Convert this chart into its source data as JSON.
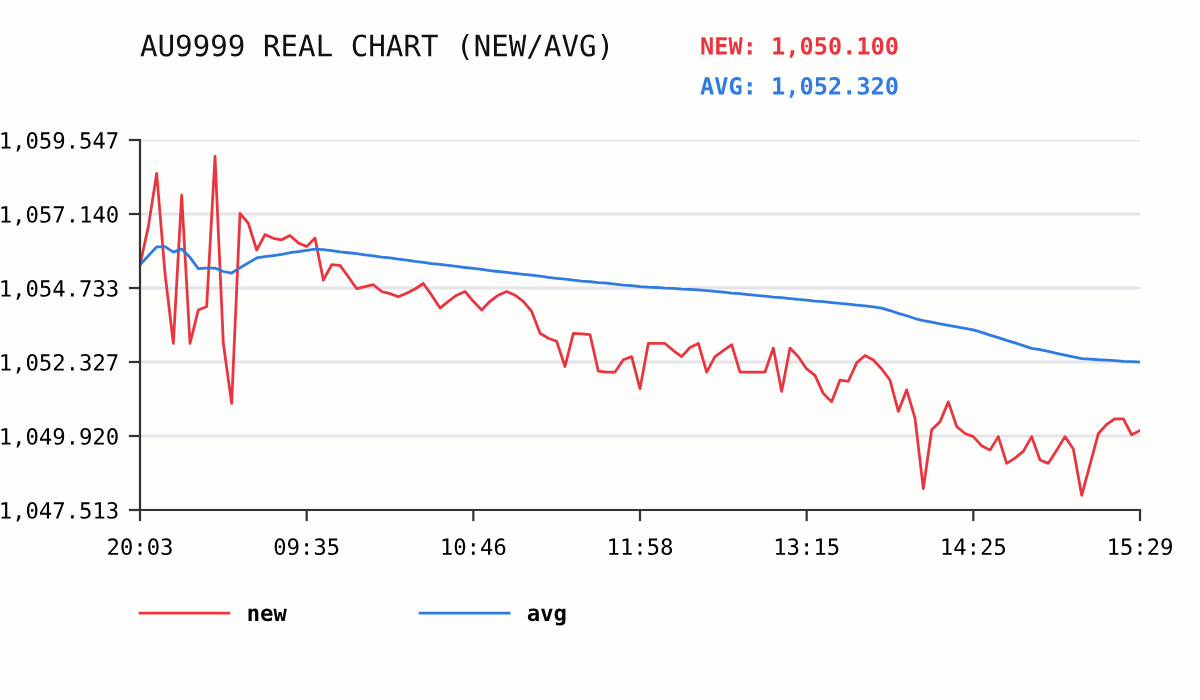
{
  "chart_data": {
    "type": "line",
    "title": "AU9999 REAL CHART (NEW/AVG)",
    "annotations": [
      "NEW: 1,050.100",
      "AVG: 1,052.320"
    ],
    "categories": [
      "20:03",
      null,
      null,
      null,
      null,
      null,
      null,
      null,
      null,
      null,
      null,
      null,
      null,
      null,
      null,
      null,
      null,
      null,
      null,
      null,
      "09:35",
      null,
      null,
      null,
      null,
      null,
      null,
      null,
      null,
      null,
      null,
      null,
      null,
      null,
      null,
      null,
      null,
      null,
      null,
      null,
      "10:46",
      null,
      null,
      null,
      null,
      null,
      null,
      null,
      null,
      null,
      null,
      null,
      null,
      null,
      null,
      null,
      null,
      null,
      null,
      null,
      "11:58",
      null,
      null,
      null,
      null,
      null,
      null,
      null,
      null,
      null,
      null,
      null,
      null,
      null,
      null,
      null,
      null,
      null,
      null,
      null,
      "13:15",
      null,
      null,
      null,
      null,
      null,
      null,
      null,
      null,
      null,
      null,
      null,
      null,
      null,
      null,
      null,
      null,
      null,
      null,
      null,
      "14:25",
      null,
      null,
      null,
      null,
      null,
      null,
      null,
      null,
      null,
      null,
      null,
      null,
      null,
      null,
      null,
      null,
      null,
      null,
      null,
      "15:29"
    ],
    "ylim": [
      1047.513,
      1059.547
    ],
    "yticks": [
      {
        "value": 1047.513,
        "label": "1,047.513"
      },
      {
        "value": 1049.92,
        "label": "1,049.920"
      },
      {
        "value": 1052.327,
        "label": "1,052.327"
      },
      {
        "value": 1054.733,
        "label": "1,054.733"
      },
      {
        "value": 1057.14,
        "label": "1,057.140"
      },
      {
        "value": 1059.547,
        "label": "1,059.547"
      }
    ],
    "grid": "y",
    "legend": "bottom left",
    "marker": "none",
    "line_style": "solid",
    "series": [
      {
        "name": "new",
        "color": "#e8353f",
        "values": [
          1055.49,
          1056.73,
          1058.46,
          1055.21,
          1052.93,
          1057.75,
          1052.93,
          1054.02,
          1054.13,
          1059.01,
          1052.93,
          1050.98,
          1057.16,
          1056.84,
          1055.97,
          1056.47,
          1056.35,
          1056.3,
          1056.44,
          1056.2,
          1056.08,
          1056.36,
          1054.99,
          1055.49,
          1055.47,
          1055.1,
          1054.71,
          1054.78,
          1054.84,
          1054.62,
          1054.55,
          1054.45,
          1054.56,
          1054.7,
          1054.88,
          1054.5,
          1054.08,
          1054.3,
          1054.5,
          1054.62,
          1054.3,
          1054.02,
          1054.3,
          1054.5,
          1054.62,
          1054.5,
          1054.3,
          1053.97,
          1053.26,
          1053.1,
          1053.0,
          1052.18,
          1053.26,
          1053.24,
          1053.22,
          1052.03,
          1052.0,
          1052.0,
          1052.4,
          1052.5,
          1051.46,
          1052.93,
          1052.93,
          1052.93,
          1052.7,
          1052.5,
          1052.8,
          1052.93,
          1052.0,
          1052.5,
          1052.7,
          1052.89,
          1052.0,
          1052.0,
          1052.0,
          1052.0,
          1052.78,
          1051.37,
          1052.78,
          1052.5,
          1052.1,
          1051.89,
          1051.3,
          1051.03,
          1051.74,
          1051.7,
          1052.3,
          1052.54,
          1052.39,
          1052.1,
          1051.74,
          1050.72,
          1051.42,
          1050.5,
          1048.21,
          1050.12,
          1050.38,
          1051.03,
          1050.23,
          1050.0,
          1049.9,
          1049.6,
          1049.46,
          1049.9,
          1049.03,
          1049.2,
          1049.42,
          1049.9,
          1049.14,
          1049.03,
          1049.46,
          1049.9,
          1049.5,
          1047.99,
          1048.99,
          1050.0,
          1050.3,
          1050.48,
          1050.48,
          1049.96,
          1050.1
        ]
      },
      {
        "name": "avg",
        "color": "#2f7be0",
        "values": [
          1055.49,
          1055.78,
          1056.07,
          1056.08,
          1055.9,
          1056.0,
          1055.73,
          1055.36,
          1055.38,
          1055.38,
          1055.27,
          1055.22,
          1055.39,
          1055.55,
          1055.71,
          1055.75,
          1055.79,
          1055.83,
          1055.88,
          1055.92,
          1055.96,
          1056.0,
          1055.98,
          1055.95,
          1055.91,
          1055.88,
          1055.85,
          1055.81,
          1055.78,
          1055.74,
          1055.71,
          1055.67,
          1055.64,
          1055.6,
          1055.57,
          1055.53,
          1055.5,
          1055.47,
          1055.44,
          1055.4,
          1055.37,
          1055.34,
          1055.3,
          1055.27,
          1055.24,
          1055.21,
          1055.18,
          1055.15,
          1055.12,
          1055.08,
          1055.05,
          1055.02,
          1054.99,
          1054.96,
          1054.94,
          1054.91,
          1054.89,
          1054.86,
          1054.83,
          1054.81,
          1054.78,
          1054.76,
          1054.75,
          1054.73,
          1054.72,
          1054.7,
          1054.69,
          1054.67,
          1054.65,
          1054.62,
          1054.6,
          1054.57,
          1054.55,
          1054.52,
          1054.49,
          1054.47,
          1054.44,
          1054.42,
          1054.39,
          1054.36,
          1054.34,
          1054.31,
          1054.29,
          1054.26,
          1054.23,
          1054.21,
          1054.18,
          1054.15,
          1054.12,
          1054.08,
          1054.0,
          1053.91,
          1053.83,
          1053.74,
          1053.67,
          1053.62,
          1053.57,
          1053.52,
          1053.47,
          1053.42,
          1053.37,
          1053.29,
          1053.2,
          1053.12,
          1053.03,
          1052.95,
          1052.86,
          1052.77,
          1052.73,
          1052.67,
          1052.61,
          1052.55,
          1052.49,
          1052.44,
          1052.42,
          1052.4,
          1052.39,
          1052.37,
          1052.35,
          1052.34,
          1052.32
        ]
      }
    ]
  }
}
